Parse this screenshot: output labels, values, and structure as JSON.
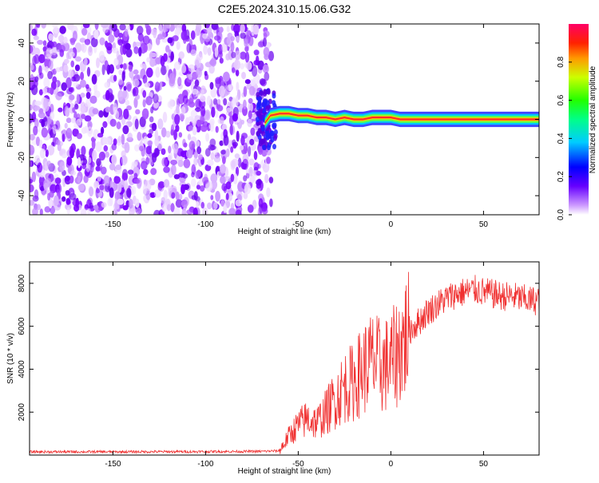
{
  "title": "C2E5.2024.310.15.06.G32",
  "chart_data": [
    {
      "type": "heatmap",
      "xlabel": "Height of straight line (km)",
      "ylabel": "Frequency (Hz)",
      "xlim": [
        -195,
        80
      ],
      "ylim": [
        -50,
        50
      ],
      "x_ticks": [
        -150,
        -100,
        -50,
        0,
        50
      ],
      "y_ticks": [
        -40,
        -20,
        0,
        20,
        40
      ],
      "noise_region_x": [
        -195,
        -68
      ],
      "signal_line": [
        {
          "x": -68,
          "y": -2
        },
        {
          "x": -65,
          "y": 2
        },
        {
          "x": -60,
          "y": 3
        },
        {
          "x": -55,
          "y": 3
        },
        {
          "x": -50,
          "y": 2
        },
        {
          "x": -45,
          "y": 2
        },
        {
          "x": -40,
          "y": 1
        },
        {
          "x": -35,
          "y": 1
        },
        {
          "x": -30,
          "y": 0
        },
        {
          "x": -25,
          "y": 1
        },
        {
          "x": -20,
          "y": 0
        },
        {
          "x": -15,
          "y": 0
        },
        {
          "x": -10,
          "y": 1
        },
        {
          "x": -5,
          "y": 1
        },
        {
          "x": 0,
          "y": 1
        },
        {
          "x": 5,
          "y": 0
        },
        {
          "x": 10,
          "y": 0
        },
        {
          "x": 20,
          "y": 0
        },
        {
          "x": 40,
          "y": 0
        },
        {
          "x": 60,
          "y": 0
        },
        {
          "x": 80,
          "y": 0
        }
      ],
      "colorbar": {
        "label": "Normalized spectral amplitude",
        "range": [
          0,
          1
        ],
        "ticks": [
          "0.0",
          "0.2",
          "0.4",
          "0.6",
          "0.8"
        ]
      }
    },
    {
      "type": "line",
      "xlabel": "Height of straight line (km)",
      "ylabel": "SNR (10 * v/v)",
      "xlim": [
        -195,
        80
      ],
      "ylim": [
        0,
        9000
      ],
      "x_ticks": [
        -150,
        -100,
        -50,
        0,
        50
      ],
      "y_ticks": [
        2000,
        4000,
        6000,
        8000
      ],
      "series": [
        {
          "color": "#f03030",
          "points": [
            {
              "x": -195,
              "y": 150
            },
            {
              "x": -150,
              "y": 150
            },
            {
              "x": -100,
              "y": 160
            },
            {
              "x": -70,
              "y": 170
            },
            {
              "x": -60,
              "y": 200
            },
            {
              "x": -55,
              "y": 900
            },
            {
              "x": -50,
              "y": 1400
            },
            {
              "x": -45,
              "y": 1700
            },
            {
              "x": -40,
              "y": 1500
            },
            {
              "x": -35,
              "y": 2000
            },
            {
              "x": -30,
              "y": 2600
            },
            {
              "x": -25,
              "y": 3200
            },
            {
              "x": -20,
              "y": 3400
            },
            {
              "x": -15,
              "y": 4000
            },
            {
              "x": -10,
              "y": 4400
            },
            {
              "x": -5,
              "y": 4100
            },
            {
              "x": 0,
              "y": 4300
            },
            {
              "x": 5,
              "y": 5000
            },
            {
              "x": 10,
              "y": 5800
            },
            {
              "x": 15,
              "y": 6200
            },
            {
              "x": 20,
              "y": 6700
            },
            {
              "x": 25,
              "y": 7000
            },
            {
              "x": 30,
              "y": 7300
            },
            {
              "x": 35,
              "y": 7500
            },
            {
              "x": 40,
              "y": 7600
            },
            {
              "x": 45,
              "y": 7700
            },
            {
              "x": 50,
              "y": 7600
            },
            {
              "x": 55,
              "y": 7500
            },
            {
              "x": 60,
              "y": 7400
            },
            {
              "x": 65,
              "y": 7400
            },
            {
              "x": 70,
              "y": 7300
            },
            {
              "x": 75,
              "y": 7200
            },
            {
              "x": 80,
              "y": 7200
            }
          ]
        }
      ]
    }
  ]
}
